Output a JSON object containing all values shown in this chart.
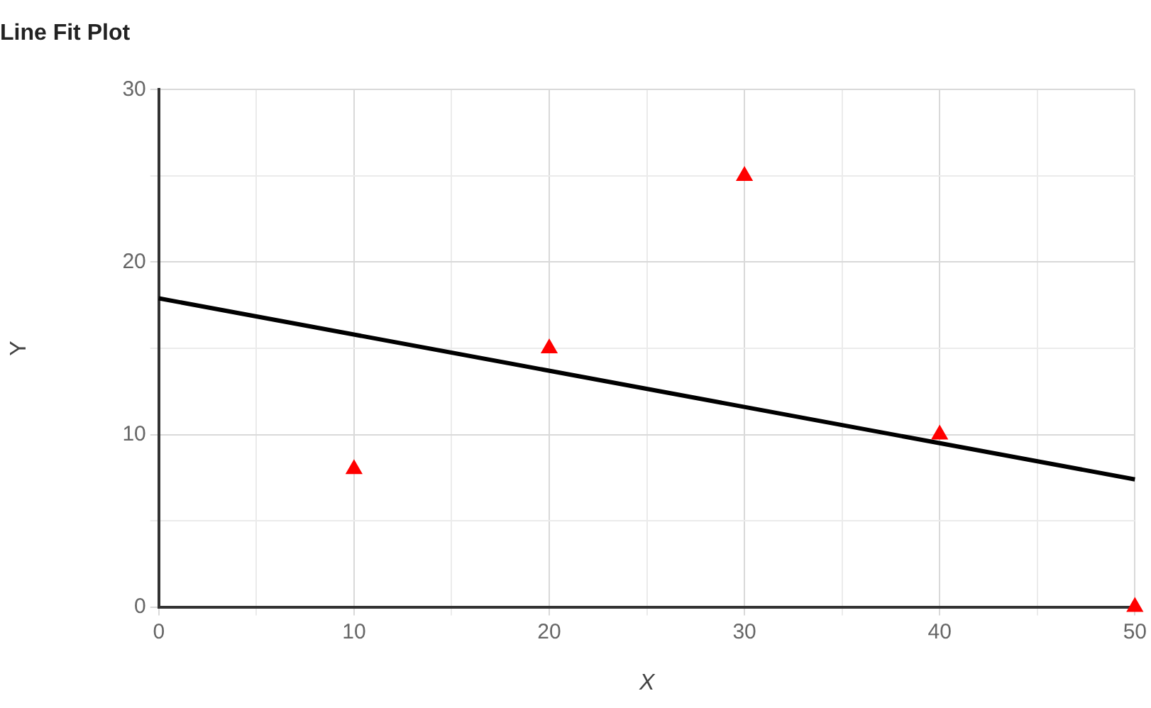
{
  "chart_data": {
    "type": "scatter",
    "title": "Line Fit Plot",
    "xlabel": "X",
    "ylabel": "Y",
    "series": [
      {
        "color": "#ff0000",
        "marker": "triangle",
        "x": [
          10,
          20,
          30,
          40,
          50
        ],
        "values": [
          8,
          15,
          25,
          10,
          0
        ]
      },
      {
        "type": "line",
        "color": "#000000",
        "marker": "none",
        "line_style": "solid",
        "x": [
          0,
          50
        ],
        "values": [
          17.9,
          7.4
        ]
      }
    ],
    "xlim": [
      0,
      50
    ],
    "xticks": [
      0,
      {
        "value": 5,
        "label": null
      },
      10,
      {
        "value": 15,
        "label": null
      },
      20,
      {
        "value": 25,
        "label": null
      },
      30,
      {
        "value": 35,
        "label": null
      },
      40,
      {
        "value": 45,
        "label": null
      },
      50
    ],
    "ylim": [
      0,
      30
    ],
    "yticks": [
      0,
      {
        "value": 5,
        "label": null
      },
      10,
      {
        "value": 15,
        "label": null
      },
      20,
      {
        "value": 25,
        "label": null
      },
      30
    ],
    "grid": true,
    "legend": false
  }
}
